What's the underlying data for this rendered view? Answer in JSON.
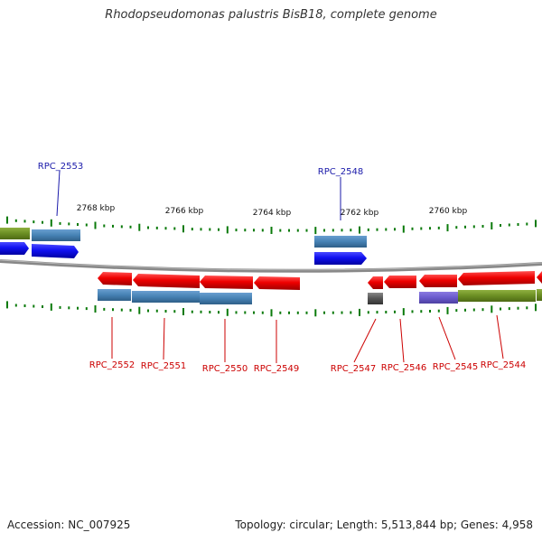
{
  "title": "Rhodopseudomonas palustris BisB18, complete genome",
  "accession_label": "Accession: NC_007925",
  "topology_label": "Topology: circular; Length: 5,513,844 bp; Genes: 4,958",
  "colors": {
    "forward_gene": "#1010f0",
    "reverse_gene": "#ee0000",
    "orthology_blue": "#4682b4",
    "orthology_green": "#6b8e23",
    "orthology_purple": "#6a5acd",
    "orthology_gray": "#555555",
    "label_forward": "#1a1aaa",
    "label_reverse": "#cc0000",
    "tick": "#0a7a0a",
    "backbone": "#888888"
  },
  "scale_labels": [
    "2768 kbp",
    "2766 kbp",
    "2764 kbp",
    "2762 kbp",
    "2760 kbp"
  ],
  "forward_genes": [
    {
      "label": "",
      "strand": "+"
    },
    {
      "label": "RPC_2553",
      "strand": "+"
    },
    {
      "label": "RPC_2548",
      "strand": "+"
    }
  ],
  "reverse_genes": [
    {
      "label": "RPC_2552",
      "strand": "-"
    },
    {
      "label": "RPC_2551",
      "strand": "-"
    },
    {
      "label": "RPC_2550",
      "strand": "-"
    },
    {
      "label": "RPC_2549",
      "strand": "-"
    },
    {
      "label": "RPC_2547",
      "strand": "-"
    },
    {
      "label": "RPC_2546",
      "strand": "-"
    },
    {
      "label": "RPC_2545",
      "strand": "-"
    },
    {
      "label": "RPC_2544",
      "strand": "-"
    },
    {
      "label": "",
      "strand": "-"
    }
  ]
}
